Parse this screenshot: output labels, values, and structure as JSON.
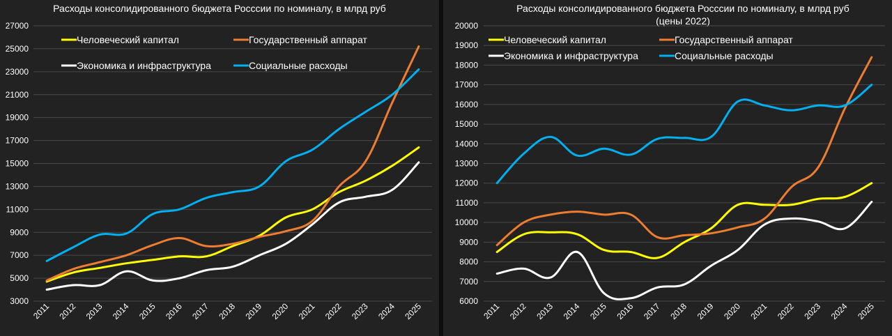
{
  "chart_data": [
    {
      "type": "line",
      "title": "Расходы консолидированного бюджета Росссии по номиналу, в млрд руб",
      "subtitle": "",
      "categories": [
        "2011",
        "2012",
        "2013",
        "2014",
        "2015",
        "2016",
        "2017",
        "2018",
        "2019",
        "2020",
        "2021",
        "2022",
        "2023",
        "2024",
        "2025"
      ],
      "ylim": [
        3000,
        27000
      ],
      "yticks": [
        3000,
        5000,
        7000,
        9000,
        11000,
        13000,
        15000,
        17000,
        19000,
        21000,
        23000,
        25000,
        27000
      ],
      "grid": true,
      "legend_placement": "top",
      "series": [
        {
          "name": "Человеческий капитал",
          "color": "#ffff00",
          "values": [
            4700,
            5500,
            5900,
            6300,
            6600,
            6900,
            6900,
            7800,
            8700,
            10300,
            11000,
            12500,
            13500,
            14800,
            16400
          ]
        },
        {
          "name": "Государственный аппарат",
          "color": "#ed7d31",
          "values": [
            4800,
            5800,
            6400,
            7000,
            7900,
            8500,
            7800,
            8000,
            8600,
            9100,
            10000,
            13000,
            15200,
            20300,
            25200
          ]
        },
        {
          "name": "Экономика и инфраструктура",
          "color": "#ffffff",
          "values": [
            4000,
            4400,
            4400,
            5600,
            4800,
            5000,
            5700,
            6000,
            7000,
            8000,
            9700,
            11600,
            12100,
            12700,
            15100
          ]
        },
        {
          "name": "Социальные расходы",
          "color": "#00b0f0",
          "values": [
            6500,
            7700,
            8800,
            8900,
            10600,
            11000,
            12000,
            12500,
            13000,
            15200,
            16200,
            18000,
            19500,
            21000,
            23200
          ]
        }
      ]
    },
    {
      "type": "line",
      "title": "Расходы консолидированного бюджета Росссии по номиналу, в млрд руб",
      "subtitle": "(цены 2022)",
      "categories": [
        "2011",
        "2012",
        "2013",
        "2014",
        "2015",
        "2016",
        "2017",
        "2018",
        "2019",
        "2020",
        "2021",
        "2022",
        "2023",
        "2024",
        "2025"
      ],
      "ylim": [
        6000,
        20000
      ],
      "yticks": [
        6000,
        7000,
        8000,
        9000,
        10000,
        11000,
        12000,
        13000,
        14000,
        15000,
        16000,
        17000,
        18000,
        19000,
        20000
      ],
      "grid": true,
      "legend_placement": "top",
      "series": [
        {
          "name": "Человеческий капитал",
          "color": "#ffff00",
          "values": [
            8500,
            9400,
            9500,
            9400,
            8600,
            8500,
            8200,
            9000,
            9700,
            10900,
            10900,
            10900,
            11200,
            11300,
            12000
          ]
        },
        {
          "name": "Государственный аппарат",
          "color": "#ed7d31",
          "values": [
            8850,
            10000,
            10400,
            10550,
            10400,
            10400,
            9250,
            9350,
            9450,
            9750,
            10200,
            11800,
            12800,
            15800,
            18400
          ]
        },
        {
          "name": "Экономика и инфраструктура",
          "color": "#ffffff",
          "values": [
            7400,
            7650,
            7200,
            8500,
            6400,
            6150,
            6700,
            6850,
            7800,
            8600,
            9900,
            10200,
            10050,
            9700,
            11050
          ]
        },
        {
          "name": "Социальные расходы",
          "color": "#00b0f0",
          "values": [
            12000,
            13500,
            14350,
            13400,
            13750,
            13450,
            14250,
            14300,
            14350,
            16150,
            15950,
            15700,
            15950,
            15950,
            17000
          ]
        }
      ]
    }
  ]
}
